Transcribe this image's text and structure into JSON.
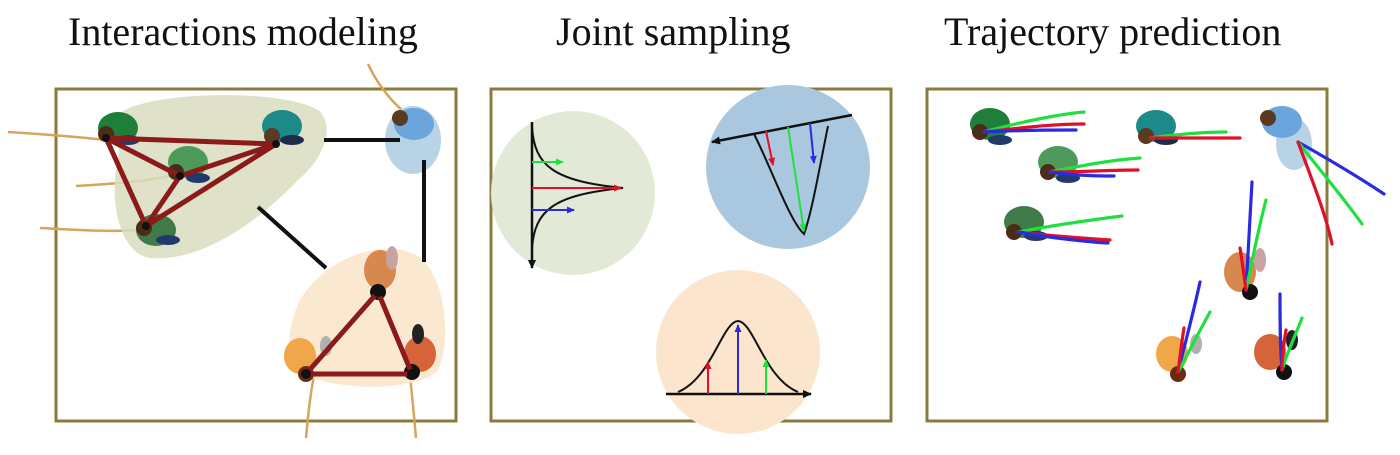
{
  "titles": {
    "interactions": "Interactions modeling",
    "sampling": "Joint sampling",
    "prediction": "Trajectory prediction"
  },
  "colors": {
    "frame": "#8c7a3c",
    "group_green": "#d9dcc0",
    "group_orange": "#fbe5cc",
    "blue_region": "#b9d3e6",
    "edge": "#8b1a1a",
    "link": "#111111",
    "path": "#d6a45a",
    "pred_red": "#e0102a",
    "pred_green": "#20e040",
    "pred_blue": "#2a2ae0"
  }
}
